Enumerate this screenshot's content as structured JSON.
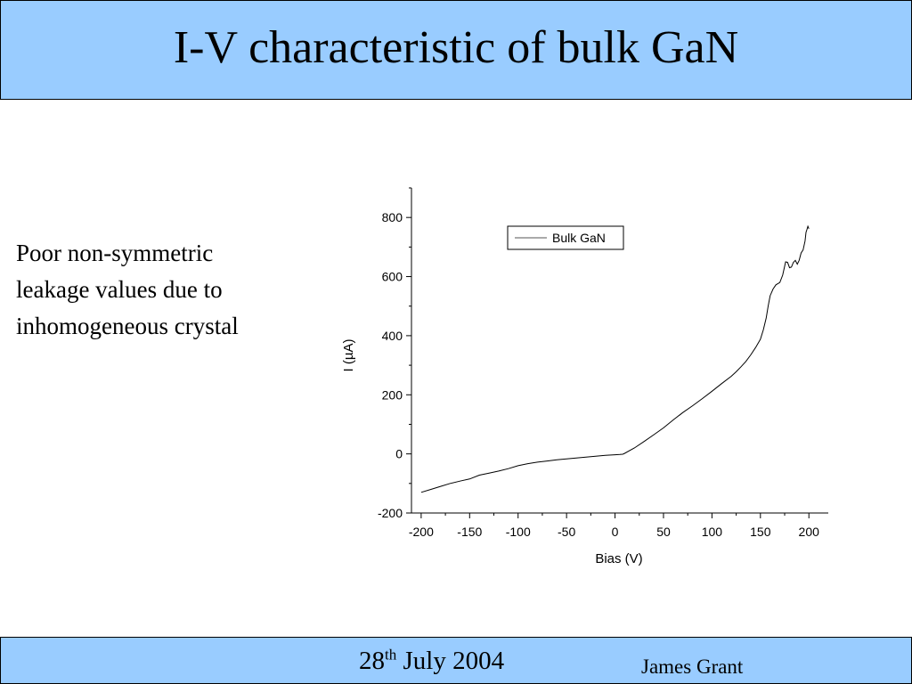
{
  "title": "I-V characteristic of bulk GaN",
  "body": {
    "lines": [
      "Poor non-symmetric",
      "leakage values due to",
      "inhomogeneous crystal"
    ]
  },
  "footer": {
    "date_day": "28",
    "date_suffix": "th",
    "date_rest": " July 2004",
    "author": "James Grant"
  },
  "colors": {
    "bar": "#99ccff",
    "line": "#000000"
  },
  "chart_data": {
    "type": "line",
    "title": "",
    "xlabel": "Bias (V)",
    "ylabel": "I (µA)",
    "xlim": [
      -210,
      220
    ],
    "ylim": [
      -200,
      900
    ],
    "xticks": [
      -200,
      -150,
      -100,
      -50,
      0,
      50,
      100,
      150,
      200
    ],
    "yticks": [
      -200,
      0,
      200,
      400,
      600,
      800
    ],
    "grid": false,
    "legend_position": "top-center",
    "series": [
      {
        "name": "Bulk GaN",
        "x": [
          -200,
          -190,
          -180,
          -170,
          -160,
          -150,
          -140,
          -130,
          -120,
          -110,
          -100,
          -90,
          -80,
          -70,
          -60,
          -50,
          -40,
          -30,
          -20,
          -10,
          0,
          5,
          8,
          10,
          20,
          30,
          40,
          50,
          60,
          70,
          80,
          90,
          100,
          110,
          120,
          125,
          130,
          135,
          140,
          145,
          150,
          153,
          156,
          158,
          160,
          163,
          166,
          170,
          173,
          176,
          178,
          180,
          182,
          184,
          186,
          188,
          190,
          192,
          194,
          196,
          197,
          198,
          199,
          200
        ],
        "y": [
          -130,
          -120,
          -110,
          -100,
          -92,
          -85,
          -72,
          -65,
          -58,
          -50,
          -40,
          -33,
          -28,
          -24,
          -20,
          -17,
          -14,
          -11,
          -8,
          -5,
          -3,
          -2,
          -1,
          2,
          20,
          42,
          65,
          88,
          115,
          140,
          163,
          187,
          212,
          238,
          263,
          278,
          295,
          313,
          335,
          360,
          388,
          420,
          460,
          500,
          535,
          558,
          572,
          580,
          605,
          650,
          648,
          630,
          632,
          648,
          655,
          642,
          655,
          680,
          690,
          720,
          750,
          760,
          770,
          762
        ]
      }
    ]
  }
}
